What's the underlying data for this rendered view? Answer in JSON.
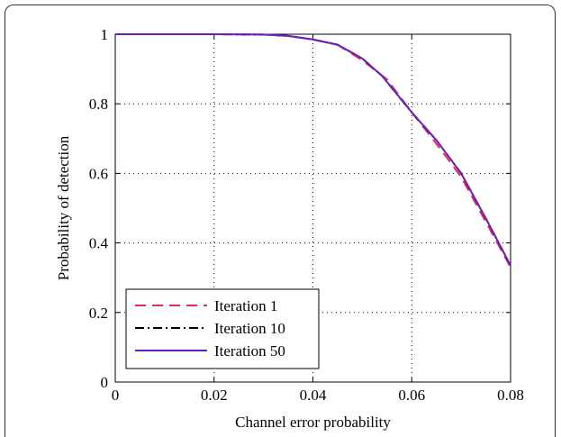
{
  "chart_data": {
    "type": "line",
    "xlabel": "Channel error probability",
    "ylabel": "Probability of detection",
    "xlim": [
      0,
      0.08
    ],
    "ylim": [
      0,
      1
    ],
    "x_ticks": [
      0,
      0.02,
      0.04,
      0.06,
      0.08
    ],
    "x_tick_labels": [
      "0",
      "0.02",
      "0.04",
      "0.06",
      "0.08"
    ],
    "y_ticks": [
      0,
      0.2,
      0.4,
      0.6,
      0.8,
      1
    ],
    "y_tick_labels": [
      "0",
      "0.2",
      "0.4",
      "0.6",
      "0.8",
      "1"
    ],
    "grid": true,
    "legend_position": "bottom-left",
    "series": [
      {
        "name": "Iteration 1",
        "color": "#e8265f",
        "style": "dashed",
        "x": [
          0,
          0.01,
          0.02,
          0.03,
          0.035,
          0.04,
          0.045,
          0.05,
          0.055,
          0.06,
          0.065,
          0.07,
          0.075,
          0.08
        ],
        "y": [
          1.0,
          1.0,
          1.0,
          0.999,
          0.995,
          0.985,
          0.97,
          0.925,
          0.87,
          0.775,
          0.685,
          0.59,
          0.46,
          0.33
        ]
      },
      {
        "name": "Iteration 10",
        "color": "#000000",
        "style": "dashdot",
        "x": [
          0,
          0.01,
          0.02,
          0.03,
          0.035,
          0.04,
          0.045,
          0.05,
          0.054,
          0.06,
          0.065,
          0.07,
          0.075,
          0.08
        ],
        "y": [
          1.0,
          1.0,
          1.0,
          0.999,
          0.995,
          0.985,
          0.97,
          0.93,
          0.88,
          0.775,
          0.695,
          0.6,
          0.47,
          0.335
        ]
      },
      {
        "name": "Iteration 50",
        "color": "#6a1fc4",
        "style": "solid",
        "x": [
          0,
          0.01,
          0.02,
          0.03,
          0.035,
          0.04,
          0.045,
          0.05,
          0.054,
          0.06,
          0.065,
          0.07,
          0.075,
          0.08
        ],
        "y": [
          1.0,
          1.0,
          1.0,
          0.999,
          0.995,
          0.985,
          0.97,
          0.93,
          0.88,
          0.775,
          0.695,
          0.6,
          0.47,
          0.335
        ]
      }
    ]
  }
}
